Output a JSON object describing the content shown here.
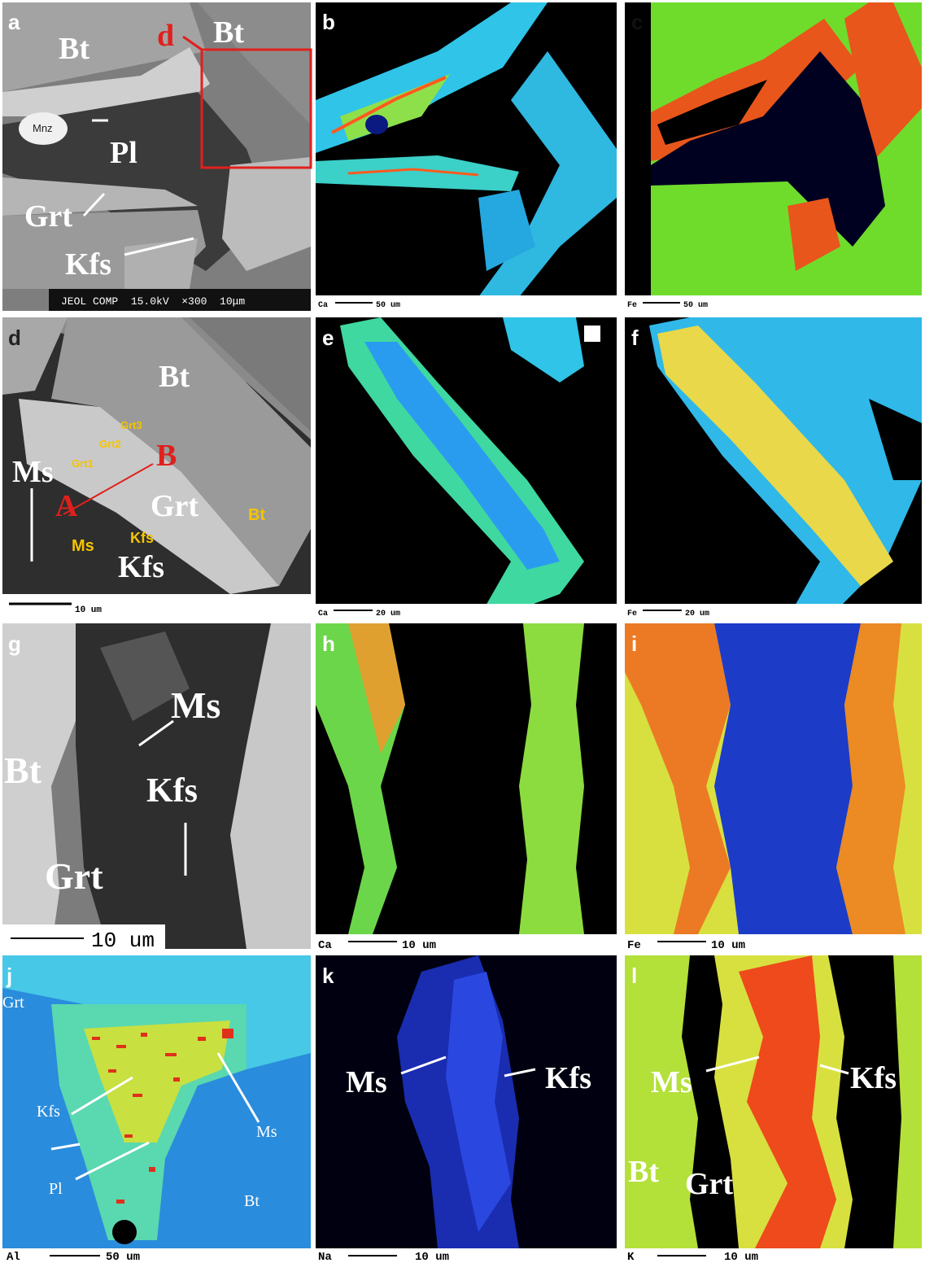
{
  "panels": [
    {
      "letter": "a",
      "labels": [
        "Bt",
        "d",
        "Bt",
        "Mnz",
        "Pl",
        "Grt",
        "Kfs"
      ],
      "caption": "JEOL COMP  15.0kV  ×300  10μm"
    },
    {
      "letter": "b",
      "element": "Ca",
      "scale": "50 um"
    },
    {
      "letter": "c",
      "element": "Fe",
      "scale": "50 um"
    },
    {
      "letter": "d",
      "labels": [
        "Bt",
        "Grt3",
        "Grt2",
        "Grt1",
        "B",
        "Ms",
        "A",
        "Grt",
        "Bt",
        "Ms",
        "Kfs",
        "Kfs"
      ],
      "scale": "10 um"
    },
    {
      "letter": "e",
      "element": "Ca",
      "scale": "20 um"
    },
    {
      "letter": "f",
      "element": "Fe",
      "scale": "20 um"
    },
    {
      "letter": "g",
      "labels": [
        "Ms",
        "Bt",
        "Kfs",
        "Grt"
      ],
      "scale": "10 um"
    },
    {
      "letter": "h",
      "element": "Ca",
      "scale": "10 um"
    },
    {
      "letter": "i",
      "element": "Fe",
      "scale": "10 um"
    },
    {
      "letter": "j",
      "labels": [
        "Grt",
        "Kfs",
        "Ms",
        "Pl",
        "Bt"
      ],
      "element": "Al",
      "scale": "50 um"
    },
    {
      "letter": "k",
      "labels": [
        "Ms",
        "Kfs"
      ],
      "element": "Na",
      "scale": "10 um"
    },
    {
      "letter": "l",
      "labels": [
        "Ms",
        "Kfs",
        "Bt",
        "Grt"
      ],
      "element": "K",
      "scale": "10 um"
    }
  ]
}
